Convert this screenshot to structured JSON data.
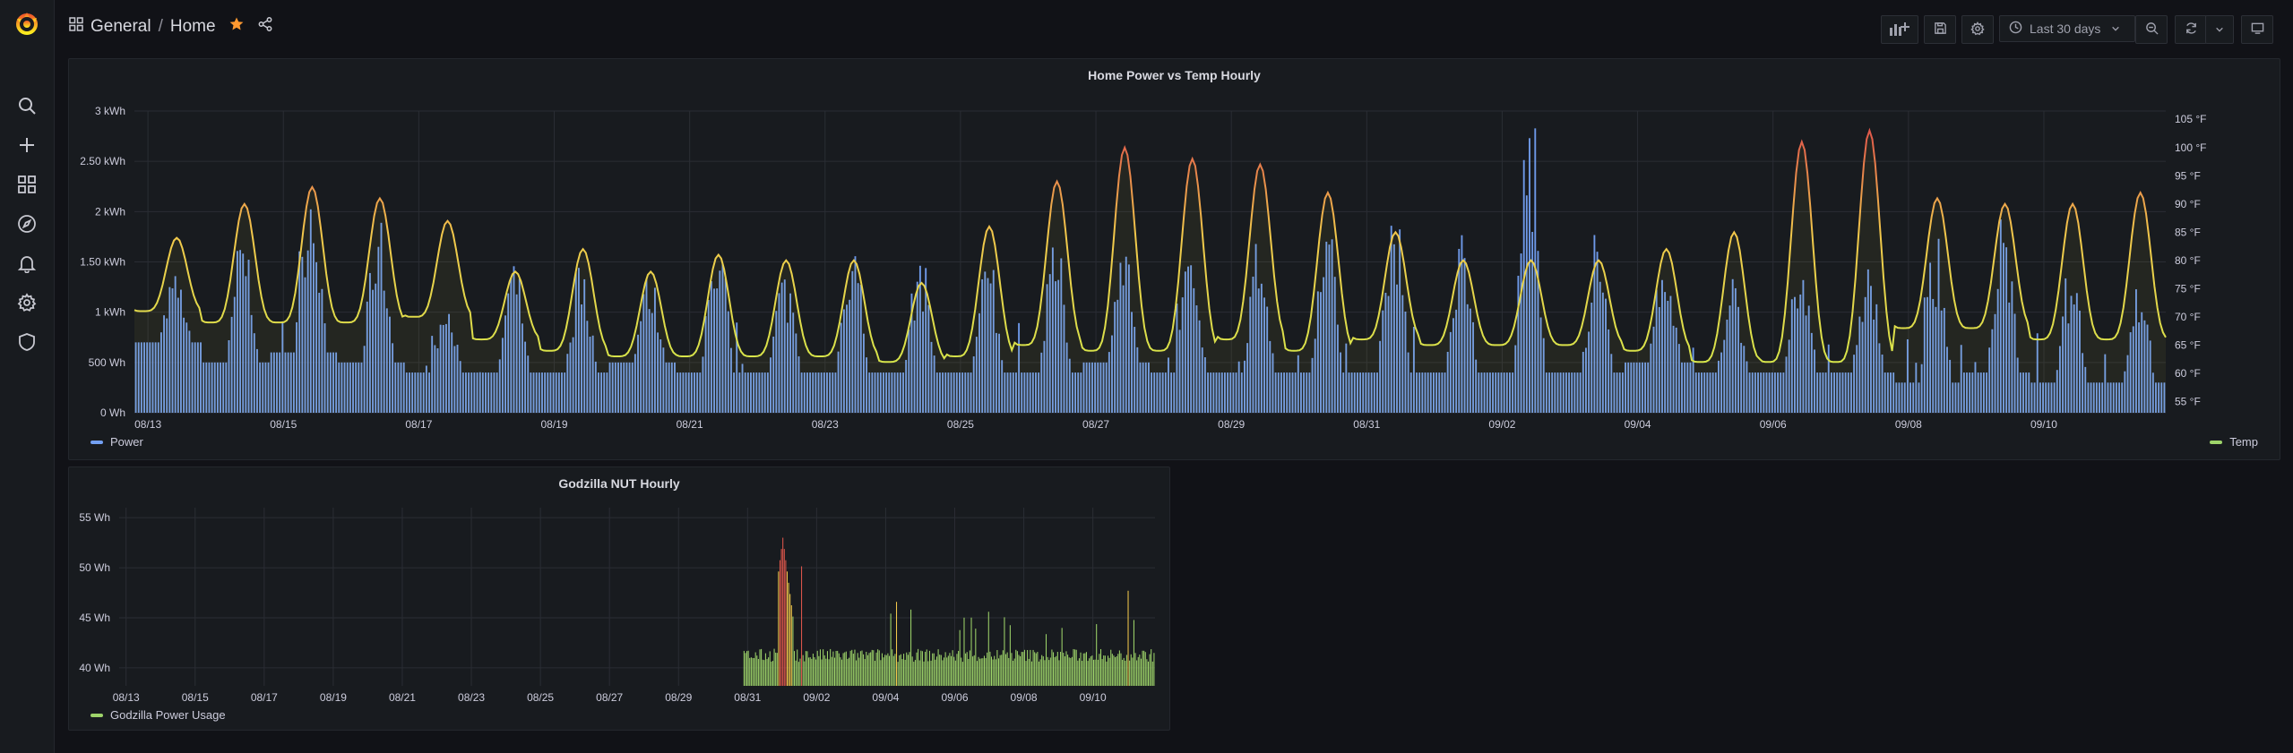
{
  "breadcrumb": {
    "folder": "General",
    "separator": "/",
    "dashboard": "Home"
  },
  "toolbar": {
    "time_range": "Last 30 days"
  },
  "icons": {
    "logo": "grafana-logo-icon",
    "sidebar": [
      "search-icon",
      "plus-icon",
      "dashboards-grid-icon",
      "explore-compass-icon",
      "alert-bell-icon",
      "gear-icon",
      "shield-icon"
    ],
    "toolbar": [
      "add-panel-icon",
      "save-icon",
      "gear-icon",
      "clock-icon",
      "zoom-out-icon",
      "refresh-icon",
      "chevron-down-icon",
      "tv-mode-icon"
    ]
  },
  "colors": {
    "background": "#111217",
    "panel": "#181b1f",
    "power": "#73a0f3",
    "godzilla": "#9ed46a",
    "temp_low": "#d7e54a",
    "temp_high": "#e0574b",
    "star": "#ff9830"
  },
  "panels": {
    "power_temp": {
      "title": "Home Power vs Temp Hourly",
      "legend_left": "Power",
      "legend_right": "Temp"
    },
    "godzilla": {
      "title": "Godzilla NUT Hourly",
      "legend": "Godzilla Power Usage"
    }
  },
  "chart_data": [
    {
      "type": "bar",
      "title": "Home Power vs Temp Hourly",
      "x_tick_labels": [
        "08/13",
        "08/15",
        "08/17",
        "08/19",
        "08/21",
        "08/23",
        "08/25",
        "08/27",
        "08/29",
        "08/31",
        "09/02",
        "09/04",
        "09/06",
        "09/08",
        "09/10"
      ],
      "y_left_tick_labels": [
        "0 Wh",
        "500 Wh",
        "1 kWh",
        "1.50 kWh",
        "2 kWh",
        "2.50 kWh",
        "3 kWh"
      ],
      "y_left_range_kwh": [
        0,
        3
      ],
      "y_right_tick_labels": [
        "55 °F",
        "60 °F",
        "65 °F",
        "70 °F",
        "75 °F",
        "80 °F",
        "85 °F",
        "90 °F",
        "95 °F",
        "100 °F",
        "105 °F"
      ],
      "y_right_range_f": [
        53,
        107
      ],
      "legend": "bottom",
      "series": [
        {
          "name": "Power",
          "axis": "left",
          "style": "bars",
          "units": "kWh",
          "daily_peak_kwh": [
            1.3,
            1.7,
            2.2,
            1.8,
            1.0,
            1.4,
            1.4,
            1.3,
            1.8,
            1.3,
            1.7,
            1.5,
            1.4,
            1.6,
            1.6,
            1.5,
            1.6,
            1.9,
            2.0,
            1.7,
            2.8,
            1.5,
            1.5,
            1.2,
            1.4,
            1.4,
            1.6,
            1.8,
            1.4,
            1.3,
            1.3
          ],
          "daily_low_kwh": [
            0.7,
            0.5,
            0.6,
            0.5,
            0.4,
            0.4,
            0.4,
            0.5,
            0.4,
            0.4,
            0.4,
            0.4,
            0.4,
            0.4,
            0.5,
            0.4,
            0.4,
            0.4,
            0.4,
            0.4,
            0.4,
            0.4,
            0.5,
            0.4,
            0.4,
            0.4,
            0.3,
            0.4,
            0.3,
            0.3,
            0.8
          ]
        },
        {
          "name": "Temp",
          "axis": "right",
          "style": "line",
          "units": "°F",
          "daily_high_f": [
            84,
            90,
            93,
            91,
            87,
            78,
            82,
            78,
            81,
            80,
            80,
            76,
            86,
            94,
            100,
            98,
            97,
            92,
            85,
            80,
            80,
            80,
            82,
            85,
            101,
            103,
            91,
            90,
            90,
            92,
            92
          ],
          "daily_low_f": [
            71,
            69,
            69,
            69,
            70,
            66,
            64,
            63,
            63,
            63,
            63,
            62,
            63,
            65,
            64,
            64,
            66,
            64,
            66,
            65,
            65,
            65,
            64,
            62,
            62,
            62,
            68,
            68,
            66,
            66,
            70
          ]
        }
      ]
    },
    {
      "type": "bar",
      "title": "Godzilla NUT Hourly",
      "x_tick_labels": [
        "08/13",
        "08/15",
        "08/17",
        "08/19",
        "08/21",
        "08/23",
        "08/25",
        "08/27",
        "08/29",
        "08/31",
        "09/02",
        "09/04",
        "09/06",
        "09/08",
        "09/10"
      ],
      "y_tick_labels": [
        "40 Wh",
        "45 Wh",
        "50 Wh",
        "55 Wh"
      ],
      "y_range_wh": [
        38.2,
        56
      ],
      "legend": "bottom",
      "series": [
        {
          "name": "Godzilla Power Usage",
          "units": "Wh",
          "data_start": "08/31",
          "daily_peak_wh": [
            42,
            53,
            46,
            47,
            47,
            46,
            46,
            46,
            45,
            46,
            46,
            48,
            49,
            45
          ]
        }
      ]
    }
  ]
}
